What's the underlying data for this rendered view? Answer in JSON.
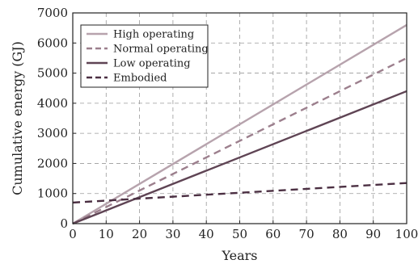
{
  "chart_data": {
    "type": "line",
    "title": "",
    "xlabel": "Years",
    "ylabel": "Cumulative energy (GJ)",
    "xlim": [
      0,
      100
    ],
    "ylim": [
      0,
      7000
    ],
    "xticks": [
      0,
      10,
      20,
      30,
      40,
      50,
      60,
      70,
      80,
      90,
      100
    ],
    "yticks": [
      0,
      1000,
      2000,
      3000,
      4000,
      5000,
      6000,
      7000
    ],
    "grid": true,
    "grid_style": "dashed",
    "legend_position": "top-left",
    "series": [
      {
        "name": "High operating",
        "x": [
          0,
          100
        ],
        "y": [
          0,
          6600
        ],
        "color": "#b7a3ad",
        "dash": "solid"
      },
      {
        "name": "Normal operating",
        "x": [
          0,
          100
        ],
        "y": [
          0,
          5500
        ],
        "color": "#9c7f8d",
        "dash": "dashed"
      },
      {
        "name": "Low operating",
        "x": [
          0,
          100
        ],
        "y": [
          0,
          4400
        ],
        "color": "#5f4454",
        "dash": "solid"
      },
      {
        "name": "Embodied",
        "x": [
          0,
          100
        ],
        "y": [
          700,
          1350
        ],
        "color": "#4b2f42",
        "dash": "dashed"
      }
    ]
  }
}
